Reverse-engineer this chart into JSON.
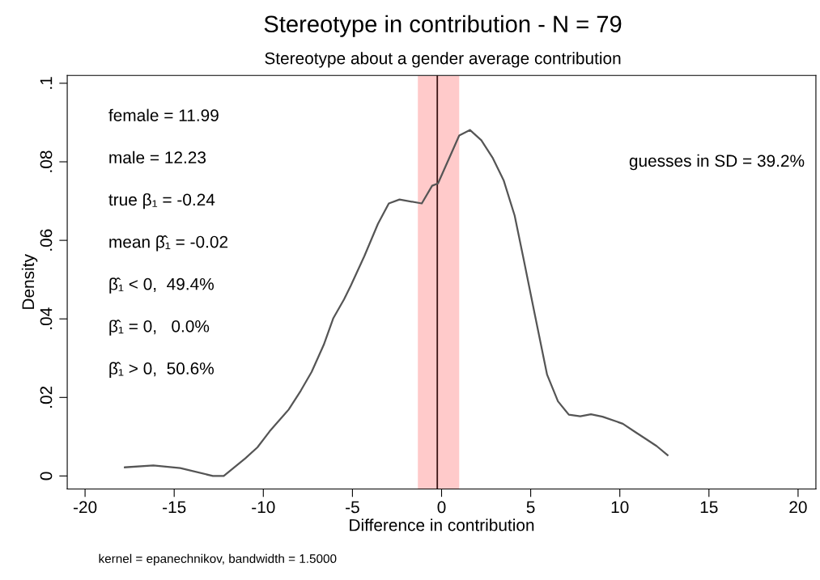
{
  "chart_data": {
    "type": "line",
    "title": "Stereotype in contribution - N = 79",
    "subtitle": "Stereotype about a gender average contribution",
    "xlabel": "Difference in contribution",
    "ylabel": "Density",
    "x": [
      -17.77,
      -16.17,
      -14.66,
      -12.83,
      -12.22,
      -11.01,
      -10.33,
      -9.64,
      -8.58,
      -7.9,
      -7.29,
      -6.61,
      -6.07,
      -5.47,
      -5.09,
      -4.33,
      -3.57,
      -2.96,
      -2.36,
      -1.11,
      -0.53,
      -0.2,
      0.99,
      1.59,
      2.23,
      2.88,
      3.49,
      4.1,
      4.63,
      5.24,
      5.92,
      6.53,
      7.14,
      7.78,
      8.38,
      9.03,
      10.17,
      10.86,
      11.47,
      12.07,
      12.68
    ],
    "series": [
      {
        "color": "#555555",
        "values": [
          0.0022,
          0.0027,
          0.002,
          0,
          0,
          0.0045,
          0.0073,
          0.0114,
          0.0169,
          0.0217,
          0.0265,
          0.0334,
          0.0402,
          0.045,
          0.0485,
          0.056,
          0.0642,
          0.0694,
          0.0704,
          0.0694,
          0.0739,
          0.0745,
          0.0867,
          0.0881,
          0.0855,
          0.0809,
          0.0752,
          0.0663,
          0.0546,
          0.0409,
          0.0258,
          0.019,
          0.0156,
          0.0152,
          0.0157,
          0.0151,
          0.0133,
          0.0112,
          0.0094,
          0.0076,
          0.0053
        ]
      }
    ],
    "xlim": [
      -21,
      21
    ],
    "xticks": [
      -20,
      -15,
      -10,
      -5,
      0,
      5,
      10,
      15,
      20
    ],
    "ylim": [
      -0.0033,
      0.102
    ],
    "yticks": [
      0,
      {
        "value": 0.02,
        "label": ".02"
      },
      {
        "value": 0.04,
        "label": ".04"
      },
      {
        "value": 0.06,
        "label": ".06"
      },
      {
        "value": 0.08,
        "label": ".08"
      },
      {
        "value": 0.1,
        "label": ".1"
      }
    ],
    "ref_lines": [
      {
        "axis": "x",
        "value": -0.24,
        "color": "#3a1414"
      }
    ],
    "bands": [
      {
        "axis": "x",
        "from": -1.33,
        "to": 0.99,
        "color": "#ffcaca"
      }
    ],
    "annotations": [
      "female = 11.99",
      "male = 12.23",
      "true β₁ = -0.24",
      "mean β̂₁ = -0.02",
      "β̂₁ < 0,  49.4%",
      "β̂₁ = 0,   0.0%",
      "β̂₁ > 0,  50.6%",
      "guesses in SD = 39.2%",
      "kernel = epanechnikov, bandwidth = 1.5000"
    ],
    "line_style": "solid"
  }
}
